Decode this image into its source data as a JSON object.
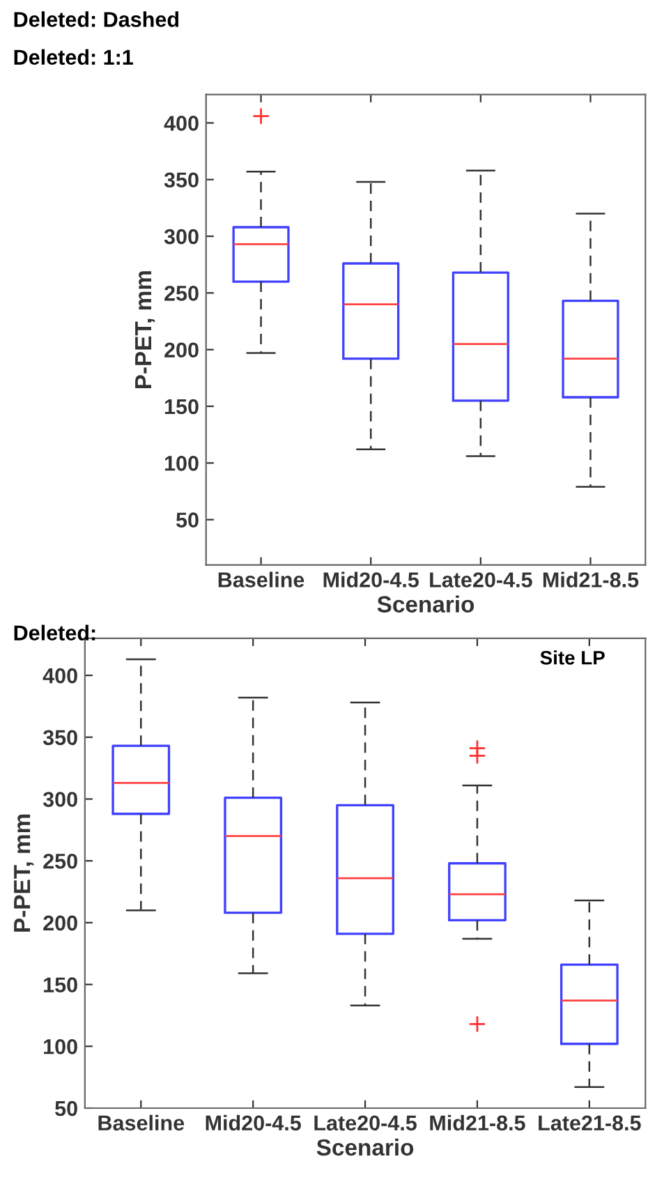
{
  "chart_data": [
    {
      "type": "box",
      "xlabel": "Scenario",
      "ylabel": "P-PET, mm",
      "categories": [
        "Baseline",
        "Mid20-4.5",
        "Late20-4.5",
        "Mid21-8.5"
      ],
      "ylim": [
        10,
        425
      ],
      "yticks": [
        50,
        100,
        150,
        200,
        250,
        300,
        350,
        400
      ],
      "boxes": [
        {
          "low": 197,
          "q1": 260,
          "median": 293,
          "q3": 308,
          "high": 357,
          "outliers": [
            406
          ]
        },
        {
          "low": 112,
          "q1": 192,
          "median": 240,
          "q3": 276,
          "high": 348
        },
        {
          "low": 106,
          "q1": 155,
          "median": 205,
          "q3": 268,
          "high": 358
        },
        {
          "low": 79,
          "q1": 158,
          "median": 192,
          "q3": 243,
          "high": 320
        }
      ],
      "annotations": [
        "Deleted: Dashed",
        "Deleted: 1:1",
        "Deleted:"
      ]
    },
    {
      "type": "box",
      "xlabel": "Scenario",
      "ylabel": "P-PET, mm",
      "categories": [
        "Baseline",
        "Mid20-4.5",
        "Late20-4.5",
        "Mid21-8.5",
        "Late21-8.5"
      ],
      "ylim": [
        50,
        430
      ],
      "yticks": [
        50,
        100,
        150,
        200,
        250,
        300,
        350,
        400
      ],
      "boxes": [
        {
          "low": 210,
          "q1": 288,
          "median": 313,
          "q3": 343,
          "high": 413
        },
        {
          "low": 159,
          "q1": 208,
          "median": 270,
          "q3": 301,
          "high": 382
        },
        {
          "low": 133,
          "q1": 191,
          "median": 236,
          "q3": 295,
          "high": 378
        },
        {
          "low": 187,
          "q1": 202,
          "median": 223,
          "q3": 248,
          "high": 311,
          "outliers": [
            341,
            335,
            118
          ]
        },
        {
          "low": 67,
          "q1": 102,
          "median": 137,
          "q3": 166,
          "high": 218
        }
      ],
      "annotations": [
        "Site LP"
      ]
    }
  ]
}
